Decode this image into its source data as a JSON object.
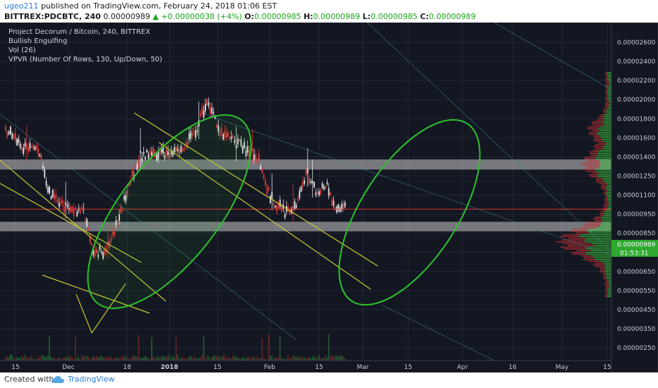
{
  "header": {
    "author": "ugeo211",
    "published_text": "published on TradingView.com, February 24, 2018 01:06 EST",
    "symbol": "BITTREX:PDCBTC, 240",
    "last": "0.00000989",
    "change": "+0.00000038 (+4%)",
    "o_label": "O:",
    "o": "0.00000985",
    "h_label": "H:",
    "h": "0.00000989",
    "l_label": "L:",
    "l": "0.00000985",
    "c_label": "C:",
    "c": "0.00000989"
  },
  "indicators": [
    "Project Decorum / Bitcoin, 240, BITTREX",
    "Bullish Engulfing",
    "Vol (26)",
    "VPVR (Number Of Rows, 130, Up/Down, 50)"
  ],
  "footer": {
    "created_with": "Created with",
    "brand": "TradingView"
  },
  "colors": {
    "background": "#131722",
    "candle_up": "#e6e6e6",
    "candle_down": "#e23a3a",
    "ellipse": "#2ec22e",
    "trendline": "#c8c832",
    "price_line": "#d83232",
    "zone": "#c8c8c8",
    "vpvr_up": "#3cc83c",
    "vpvr_down": "#c83232"
  },
  "chart_data": {
    "type": "candlestick",
    "title": "Project Decorum / Bitcoin, 240, BITTREX",
    "x_ticks": [
      "15",
      "Dec",
      "18",
      "2018",
      "15",
      "Feb",
      "15",
      "Mar",
      "15",
      "Apr",
      "16",
      "May",
      "15"
    ],
    "y_ticks": [
      "0.00002600",
      "0.00002400",
      "0.00002200",
      "0.00002000",
      "0.00001800",
      "0.00001600",
      "0.00001400",
      "0.00001250",
      "0.00001100",
      "0.00000950",
      "0.00000850",
      "0.00000750",
      "0.00000650",
      "0.00000550",
      "0.00000450",
      "0.00000350",
      "0.00000250"
    ],
    "last_price_label": "0.00000989",
    "countdown_label": "01:53:31",
    "price_path": [
      {
        "date": "2017-11-10",
        "price": 1.78e-05
      },
      {
        "date": "2017-11-16",
        "price": 1.52e-05
      },
      {
        "date": "2017-11-22",
        "price": 1.45e-05
      },
      {
        "date": "2017-11-26",
        "price": 1.08e-05
      },
      {
        "date": "2017-12-01",
        "price": 1e-05
      },
      {
        "date": "2017-12-06",
        "price": 9.6e-06
      },
      {
        "date": "2017-12-09",
        "price": 7.3e-06
      },
      {
        "date": "2017-12-14",
        "price": 7.8e-06
      },
      {
        "date": "2017-12-19",
        "price": 1.12e-05
      },
      {
        "date": "2017-12-23",
        "price": 1.4e-05
      },
      {
        "date": "2017-12-28",
        "price": 1.42e-05
      },
      {
        "date": "2018-01-03",
        "price": 1.45e-05
      },
      {
        "date": "2018-01-08",
        "price": 1.6e-05
      },
      {
        "date": "2018-01-13",
        "price": 1.98e-05
      },
      {
        "date": "2018-01-17",
        "price": 1.65e-05
      },
      {
        "date": "2018-01-23",
        "price": 1.52e-05
      },
      {
        "date": "2018-01-28",
        "price": 1.4e-05
      },
      {
        "date": "2018-02-01",
        "price": 1.08e-05
      },
      {
        "date": "2018-02-05",
        "price": 9.7e-06
      },
      {
        "date": "2018-02-09",
        "price": 1e-05
      },
      {
        "date": "2018-02-12",
        "price": 1.28e-05
      },
      {
        "date": "2018-02-15",
        "price": 1.12e-05
      },
      {
        "date": "2018-02-18",
        "price": 1.18e-05
      },
      {
        "date": "2018-02-21",
        "price": 1e-05
      },
      {
        "date": "2018-02-24",
        "price": 9.89e-06
      }
    ],
    "horizontal_zones": [
      {
        "price_from": 1.3e-05,
        "price_to": 1.38e-05
      },
      {
        "price_from": 8.6e-06,
        "price_to": 9.1e-06
      }
    ],
    "ylim": [
      2.2e-06,
      2.7e-05
    ],
    "grid": true,
    "legend": "top-left"
  }
}
